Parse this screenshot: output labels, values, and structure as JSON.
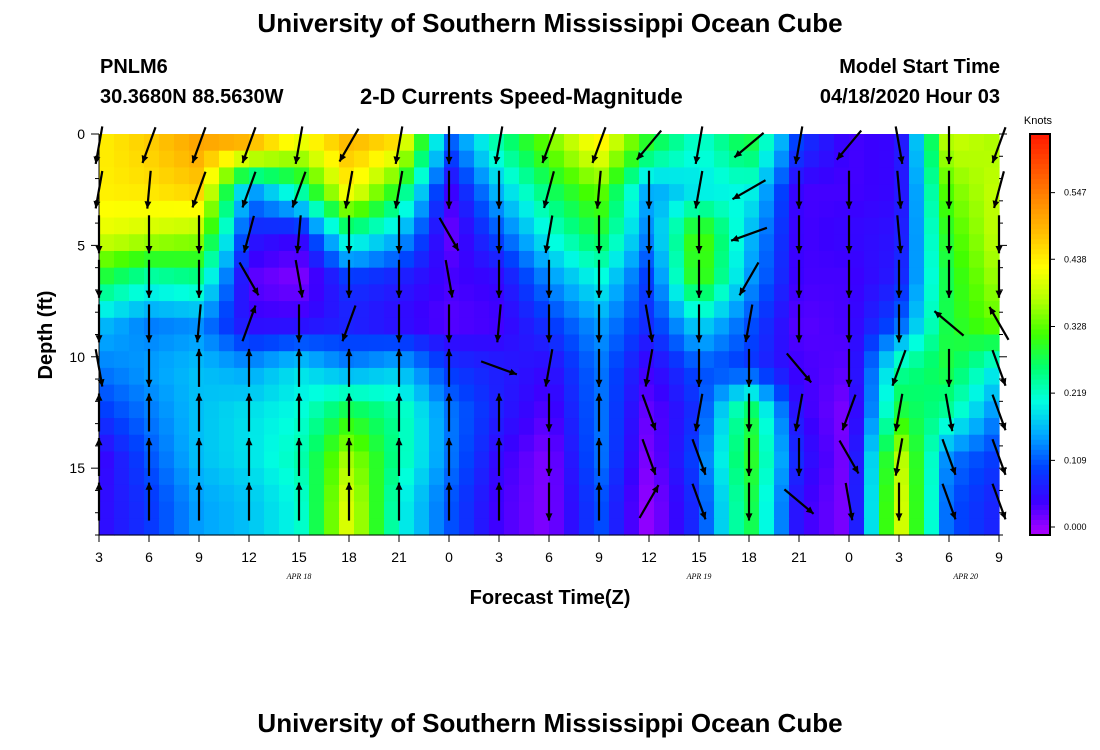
{
  "header": {
    "title": "University of Southern Mississippi Ocean Cube",
    "station_id": "PNLM6",
    "station_coords": "30.3680N 88.5630W",
    "subtitle": "2-D Currents Speed-Magnitude",
    "model_start_label": "Model Start Time",
    "model_start_value": "04/18/2020 Hour 03"
  },
  "footer": {
    "title": "University of Southern Mississippi Ocean Cube"
  },
  "chart_data": {
    "type": "heatmap",
    "title": "2-D Currents Speed-Magnitude",
    "xlabel": "Forecast Time(Z)",
    "ylabel": "Depth (ft)",
    "x_hours": [
      0,
      3,
      6,
      9,
      12,
      15,
      18,
      21,
      24,
      27,
      30,
      33,
      36,
      39,
      42,
      45,
      48,
      51,
      54
    ],
    "x_tick_labels": [
      "3",
      "6",
      "9",
      "12",
      "15",
      "18",
      "21",
      "0",
      "3",
      "6",
      "9",
      "12",
      "15",
      "18",
      "21",
      "0",
      "3",
      "6",
      "9"
    ],
    "date_labels": [
      {
        "hour": 12,
        "text": "APR 18"
      },
      {
        "hour": 36,
        "text": "APR 19"
      },
      {
        "hour": 52,
        "text": "APR 20"
      }
    ],
    "y_ticks": [
      0,
      5,
      10,
      15
    ],
    "ylim": [
      0,
      18
    ],
    "xlim": [
      0,
      54
    ],
    "colorbar": {
      "unit": "Knots",
      "tick_values": [
        0.0,
        0.109,
        0.219,
        0.328,
        0.438,
        0.547
      ],
      "tick_labels": [
        "0.000",
        "0.109",
        "0.219",
        "0.328",
        "0.438",
        "0.547"
      ],
      "max": 0.656,
      "colors": [
        "#b000ff",
        "#3a00ff",
        "#0040ff",
        "#00a8ff",
        "#00ffe0",
        "#00ff70",
        "#40ff00",
        "#b0ff00",
        "#ffff00",
        "#ffc000",
        "#ff8a00",
        "#ff5000",
        "#ff1800"
      ]
    },
    "speed_depths": [
      0.5,
      2.5,
      4.5,
      6.5,
      8.5,
      10.5,
      12.5,
      14.5,
      16.5
    ],
    "speed_grid": [
      [
        0.45,
        0.48,
        0.52,
        0.5,
        0.42,
        0.5,
        0.46,
        0.12,
        0.25,
        0.35,
        0.45,
        0.3,
        0.22,
        0.3,
        0.1,
        0.05,
        0.06,
        0.4,
        0.38
      ],
      [
        0.45,
        0.46,
        0.48,
        0.15,
        0.25,
        0.45,
        0.3,
        0.05,
        0.18,
        0.28,
        0.35,
        0.16,
        0.2,
        0.22,
        0.05,
        0.05,
        0.06,
        0.35,
        0.4
      ],
      [
        0.42,
        0.4,
        0.38,
        0.08,
        0.06,
        0.25,
        0.18,
        0.03,
        0.12,
        0.22,
        0.3,
        0.14,
        0.35,
        0.18,
        0.05,
        0.06,
        0.07,
        0.32,
        0.4
      ],
      [
        0.3,
        0.24,
        0.26,
        0.04,
        0.02,
        0.1,
        0.08,
        0.05,
        0.06,
        0.15,
        0.22,
        0.1,
        0.34,
        0.16,
        0.05,
        0.05,
        0.08,
        0.3,
        0.38
      ],
      [
        0.18,
        0.14,
        0.15,
        0.06,
        0.06,
        0.08,
        0.06,
        0.04,
        0.05,
        0.1,
        0.16,
        0.09,
        0.2,
        0.12,
        0.04,
        0.05,
        0.12,
        0.3,
        0.35
      ],
      [
        0.14,
        0.16,
        0.18,
        0.16,
        0.2,
        0.15,
        0.18,
        0.1,
        0.08,
        0.06,
        0.14,
        0.05,
        0.12,
        0.1,
        0.05,
        0.04,
        0.25,
        0.3,
        0.2
      ],
      [
        0.1,
        0.14,
        0.18,
        0.2,
        0.22,
        0.3,
        0.25,
        0.14,
        0.08,
        0.04,
        0.14,
        0.03,
        0.1,
        0.3,
        0.06,
        0.02,
        0.3,
        0.25,
        0.14
      ],
      [
        0.05,
        0.12,
        0.18,
        0.2,
        0.24,
        0.38,
        0.25,
        0.14,
        0.06,
        0.02,
        0.14,
        0.02,
        0.12,
        0.32,
        0.08,
        0.02,
        0.4,
        0.14,
        0.1
      ],
      [
        0.06,
        0.1,
        0.16,
        0.18,
        0.22,
        0.42,
        0.22,
        0.12,
        0.05,
        0.02,
        0.12,
        0.01,
        0.1,
        0.3,
        0.06,
        0.02,
        0.42,
        0.12,
        0.08
      ]
    ],
    "vector_depths": [
      0.5,
      2.5,
      4.5,
      6.5,
      8.5,
      10.5,
      12.5,
      14.5,
      16.5
    ],
    "vector_dirs_deg": [
      [
        190,
        200,
        200,
        200,
        190,
        210,
        190,
        180,
        190,
        200,
        200,
        220,
        190,
        230,
        190,
        220,
        170,
        180,
        200
      ],
      [
        190,
        185,
        200,
        200,
        200,
        190,
        190,
        180,
        180,
        195,
        185,
        180,
        190,
        240,
        180,
        180,
        175,
        180,
        195
      ],
      [
        180,
        180,
        180,
        195,
        185,
        180,
        180,
        150,
        180,
        190,
        180,
        180,
        180,
        250,
        180,
        180,
        175,
        180,
        180
      ],
      [
        180,
        180,
        180,
        150,
        170,
        180,
        180,
        170,
        180,
        180,
        180,
        180,
        180,
        210,
        180,
        180,
        180,
        180,
        180
      ],
      [
        180,
        180,
        185,
        20,
        180,
        200,
        180,
        180,
        185,
        180,
        180,
        170,
        180,
        190,
        180,
        180,
        180,
        310,
        330
      ],
      [
        170,
        180,
        0,
        0,
        0,
        0,
        0,
        0,
        110,
        190,
        180,
        190,
        180,
        180,
        140,
        180,
        200,
        180,
        160
      ],
      [
        0,
        0,
        0,
        0,
        0,
        0,
        0,
        0,
        0,
        180,
        0,
        160,
        190,
        180,
        190,
        200,
        190,
        170,
        160
      ],
      [
        0,
        0,
        0,
        0,
        0,
        0,
        0,
        0,
        0,
        180,
        0,
        160,
        160,
        180,
        180,
        150,
        190,
        160,
        160
      ],
      [
        0,
        0,
        0,
        0,
        0,
        0,
        0,
        0,
        0,
        180,
        0,
        30,
        160,
        180,
        130,
        170,
        180,
        160,
        160
      ]
    ]
  }
}
